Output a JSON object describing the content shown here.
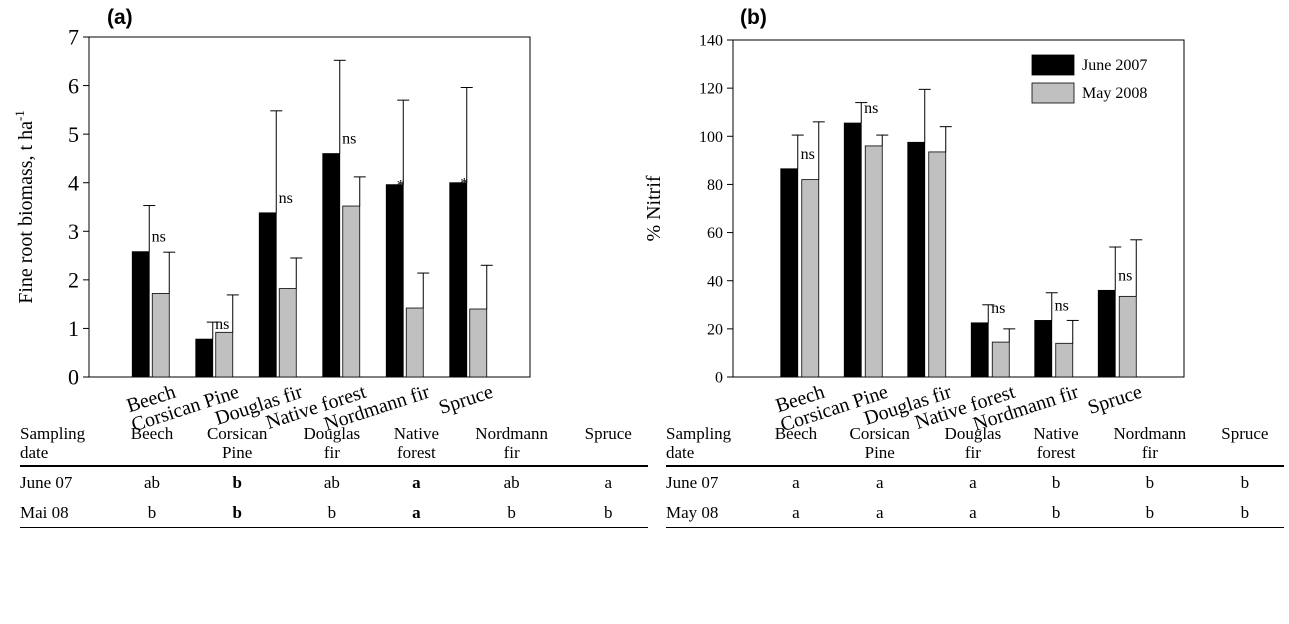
{
  "chart_data": [
    {
      "type": "bar",
      "panel_label": "(a)",
      "categories": [
        "Beech",
        "Corsican Pine",
        "Douglas fir",
        "Native forest",
        "Nordmann fir",
        "Spruce"
      ],
      "ylabel": "Fine root biomass, t ha",
      "ylabel_superscript": "-1",
      "ylim": [
        0,
        7
      ],
      "yticks": [
        "0",
        "1",
        "2",
        "3",
        "4",
        "5",
        "6",
        "7"
      ],
      "series": [
        {
          "name": "June 2007",
          "color": "#000000",
          "values": [
            2.58,
            0.78,
            3.38,
            4.6,
            3.96,
            4.0
          ],
          "errors": [
            0.95,
            0.35,
            2.1,
            1.92,
            1.74,
            1.96
          ]
        },
        {
          "name": "May 2008",
          "color": "#c0c0c0",
          "values": [
            1.72,
            0.92,
            1.82,
            3.52,
            1.42,
            1.4
          ],
          "errors": [
            0.85,
            0.77,
            0.63,
            0.6,
            0.72,
            0.9
          ]
        }
      ],
      "annotations": [
        "ns",
        "ns",
        "ns",
        "ns",
        "*",
        "*"
      ]
    },
    {
      "type": "bar",
      "panel_label": "(b)",
      "categories": [
        "Beech",
        "Corsican Pine",
        "Douglas fir",
        "Native forest",
        "Nordmann fir",
        "Spruce"
      ],
      "ylabel": "% Nitrif",
      "ylim": [
        0,
        140
      ],
      "yticks": [
        "0",
        "20",
        "40",
        "60",
        "80",
        "100",
        "120",
        "140"
      ],
      "legend_position": "top-right",
      "series": [
        {
          "name": "June 2007",
          "color": "#000000",
          "values": [
            86.5,
            105.5,
            97.5,
            22.5,
            23.5,
            36
          ],
          "errors": [
            14,
            8.5,
            22,
            7.5,
            11.5,
            18
          ]
        },
        {
          "name": "May 2008",
          "color": "#c0c0c0",
          "values": [
            82,
            96,
            93.5,
            14.5,
            14,
            33.5
          ],
          "errors": [
            24,
            4.5,
            10.5,
            5.5,
            9.5,
            23.5
          ]
        }
      ],
      "annotations": [
        "ns",
        "ns",
        "",
        "ns",
        "ns",
        "ns"
      ]
    }
  ],
  "tables": [
    {
      "headers": [
        [
          "Sampling",
          "date"
        ],
        [
          "Beech",
          ""
        ],
        [
          "Corsican",
          "Pine"
        ],
        [
          "Douglas",
          "fir"
        ],
        [
          "Native",
          "forest"
        ],
        [
          "Nordmann",
          "fir"
        ],
        [
          "Spruce",
          ""
        ]
      ],
      "rows": [
        {
          "label": "June 07",
          "cells": [
            "ab",
            "b",
            "ab",
            "a",
            "ab",
            "a"
          ],
          "bold": [
            false,
            true,
            false,
            true,
            false,
            false
          ]
        },
        {
          "label": "Mai 08",
          "cells": [
            "b",
            "b",
            "b",
            "a",
            "b",
            "b"
          ],
          "bold": [
            false,
            true,
            false,
            true,
            false,
            false
          ]
        }
      ]
    },
    {
      "headers": [
        [
          "Sampling",
          "date"
        ],
        [
          "Beech",
          ""
        ],
        [
          "Corsican",
          "Pine"
        ],
        [
          "Douglas",
          "fir"
        ],
        [
          "Native",
          "forest"
        ],
        [
          "Nordmann",
          "fir"
        ],
        [
          "Spruce",
          ""
        ]
      ],
      "rows": [
        {
          "label": "June 07",
          "cells": [
            "a",
            "a",
            "a",
            "b",
            "b",
            "b"
          ],
          "bold": [
            false,
            false,
            false,
            false,
            false,
            false
          ]
        },
        {
          "label": "May 08",
          "cells": [
            "a",
            "a",
            "a",
            "b",
            "b",
            "b"
          ],
          "bold": [
            false,
            false,
            false,
            false,
            false,
            false
          ]
        }
      ]
    }
  ]
}
